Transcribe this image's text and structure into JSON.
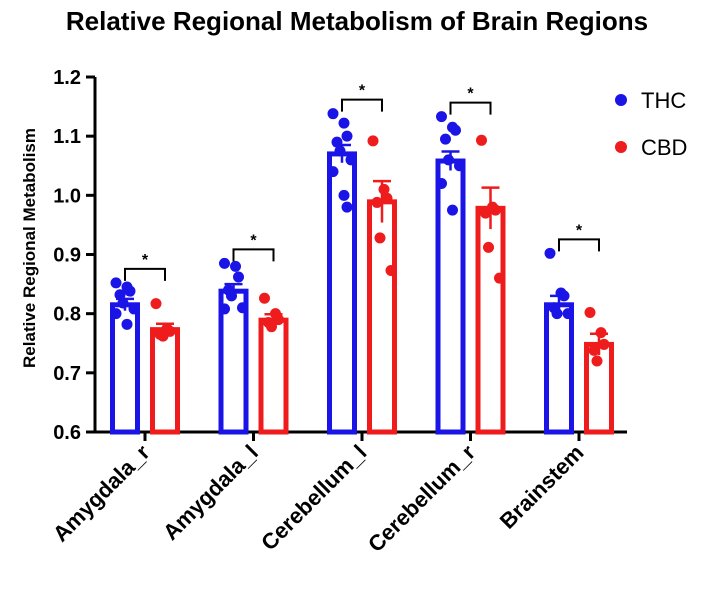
{
  "chart_data": {
    "type": "bar",
    "title": "Relative Regional Metabolism of Brain Regions",
    "ylabel": "Relative Regional Metabolism",
    "xlabel": "",
    "ylim": [
      0.6,
      1.2
    ],
    "yticks": [
      "0.6",
      "0.7",
      "0.8",
      "0.9",
      "1.0",
      "1.1",
      "1.2"
    ],
    "categories": [
      "Amygdala_r",
      "Amygdala_l",
      "Cerebellum_l",
      "Cerebellum_r",
      "Brainstem"
    ],
    "series": [
      {
        "name": "THC",
        "color": "#1a14e6",
        "values": [
          0.815,
          0.838,
          1.07,
          1.058,
          0.815
        ],
        "sem": [
          0.01,
          0.012,
          0.015,
          0.016,
          0.015
        ],
        "points": [
          [
            0.852,
            0.845,
            0.838,
            0.832,
            0.818,
            0.808,
            0.8,
            0.782
          ],
          [
            0.885,
            0.88,
            0.862,
            0.84,
            0.83,
            0.81,
            0.808
          ],
          [
            1.138,
            1.122,
            1.1,
            1.09,
            1.075,
            1.06,
            1.04,
            1.0,
            0.98
          ],
          [
            1.133,
            1.115,
            1.11,
            1.095,
            1.06,
            1.05,
            1.02,
            0.975
          ],
          [
            0.902,
            0.835,
            0.83,
            0.81,
            0.8,
            0.8
          ]
        ]
      },
      {
        "name": "CBD",
        "color": "#ee1c1c",
        "values": [
          0.773,
          0.789,
          0.989,
          0.978,
          0.748
        ],
        "sem": [
          0.01,
          0.01,
          0.035,
          0.035,
          0.018
        ],
        "points": [
          [
            0.817,
            0.775,
            0.77,
            0.765,
            0.762
          ],
          [
            0.826,
            0.8,
            0.79,
            0.785,
            0.778
          ],
          [
            1.092,
            1.01,
            0.995,
            0.988,
            0.928,
            0.873
          ],
          [
            1.093,
            0.98,
            0.975,
            0.97,
            0.912,
            0.86
          ],
          [
            0.802,
            0.768,
            0.748,
            0.738,
            0.72
          ]
        ]
      }
    ],
    "significance": [
      {
        "category": "Amygdala_r",
        "label": "*"
      },
      {
        "category": "Amygdala_l",
        "label": "*"
      },
      {
        "category": "Cerebellum_l",
        "label": "*"
      },
      {
        "category": "Cerebellum_r",
        "label": "*"
      },
      {
        "category": "Brainstem",
        "label": "*"
      }
    ],
    "legend": {
      "position": "top-right",
      "entries": [
        "THC",
        "CBD"
      ]
    },
    "grid": false
  }
}
